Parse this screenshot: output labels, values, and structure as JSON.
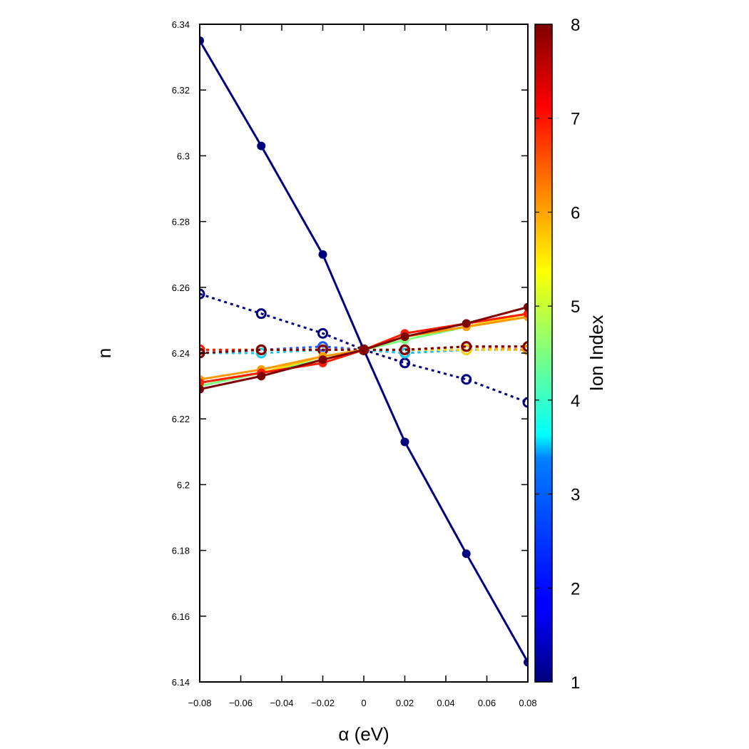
{
  "chart_data": {
    "type": "line",
    "xlabel": "α (eV)",
    "ylabel": "n",
    "xlim": [
      -0.08,
      0.08
    ],
    "ylim": [
      6.14,
      6.34
    ],
    "x": [
      -0.08,
      -0.05,
      -0.02,
      0.0,
      0.02,
      0.05,
      0.08
    ],
    "xticks": [
      -0.08,
      -0.06,
      -0.04,
      -0.02,
      0,
      0.02,
      0.04,
      0.06,
      0.08
    ],
    "xtick_labels": [
      "−0.08",
      "−0.06",
      "−0.04",
      "−0.02",
      "0",
      "0.02",
      "0.04",
      "0.06",
      "0.08"
    ],
    "yticks": [
      6.14,
      6.16,
      6.18,
      6.2,
      6.22,
      6.24,
      6.26,
      6.28,
      6.3,
      6.32,
      6.34
    ],
    "ytick_labels": [
      "6.14",
      "6.16",
      "6.18",
      "6.2",
      "6.22",
      "6.24",
      "6.26",
      "6.28",
      "6.3",
      "6.32",
      "6.34"
    ],
    "grid": false,
    "colorbar": {
      "label": "Ion Index",
      "range": [
        1,
        8
      ],
      "ticks": [
        1,
        2,
        3,
        4,
        5,
        6,
        7,
        8
      ],
      "tick_labels": [
        "1",
        "2",
        "3",
        "4",
        "5",
        "6",
        "7",
        "8"
      ],
      "colormap": "jet"
    },
    "series": [
      {
        "ion": 1,
        "style": "solid",
        "marker": "filled-circle",
        "color": "#00007f",
        "y": [
          6.335,
          6.303,
          6.27,
          6.241,
          6.213,
          6.179,
          6.146
        ]
      },
      {
        "ion": 1,
        "style": "dotted",
        "marker": "open-circle",
        "color": "#00007f",
        "y": [
          6.258,
          6.252,
          6.246,
          6.241,
          6.237,
          6.232,
          6.225
        ]
      },
      {
        "ion": 2,
        "style": "dotted",
        "marker": "open-circle",
        "color": "#1c58ff",
        "y": [
          6.24,
          6.241,
          6.242,
          6.241,
          6.24,
          6.241,
          6.241
        ]
      },
      {
        "ion": 3,
        "style": "dotted",
        "marker": "open-circle",
        "color": "#16c8ee",
        "y": [
          6.24,
          6.24,
          6.241,
          6.241,
          6.24,
          6.241,
          6.241
        ]
      },
      {
        "ion": 4,
        "style": "solid",
        "marker": "filled-circle",
        "color": "#7bff7c",
        "y": [
          6.23,
          6.234,
          6.238,
          6.241,
          6.244,
          6.248,
          6.251
        ]
      },
      {
        "ion": 4,
        "style": "dotted",
        "marker": "open-circle",
        "color": "#7bff7c",
        "y": [
          6.241,
          6.241,
          6.241,
          6.241,
          6.241,
          6.241,
          6.241
        ]
      },
      {
        "ion": 5,
        "style": "solid",
        "marker": "filled-circle",
        "color": "#ffd400",
        "y": [
          6.231,
          6.234,
          6.239,
          6.241,
          6.245,
          6.248,
          6.252
        ]
      },
      {
        "ion": 5,
        "style": "dotted",
        "marker": "open-circle",
        "color": "#ffd400",
        "y": [
          6.241,
          6.241,
          6.241,
          6.241,
          6.241,
          6.241,
          6.241
        ]
      },
      {
        "ion": 6,
        "style": "solid",
        "marker": "filled-circle",
        "color": "#ff9a00",
        "y": [
          6.232,
          6.235,
          6.239,
          6.241,
          6.245,
          6.248,
          6.251
        ]
      },
      {
        "ion": 6,
        "style": "dotted",
        "marker": "open-circle",
        "color": "#ff9a00",
        "y": [
          6.241,
          6.241,
          6.241,
          6.241,
          6.241,
          6.242,
          6.241
        ]
      },
      {
        "ion": 7,
        "style": "solid",
        "marker": "filled-circle",
        "color": "#ff1c00",
        "y": [
          6.231,
          6.234,
          6.237,
          6.241,
          6.246,
          6.249,
          6.252
        ]
      },
      {
        "ion": 7,
        "style": "dotted",
        "marker": "open-circle",
        "color": "#ff1c00",
        "y": [
          6.241,
          6.241,
          6.241,
          6.241,
          6.241,
          6.242,
          6.242
        ]
      },
      {
        "ion": 8,
        "style": "solid",
        "marker": "filled-circle",
        "color": "#7f0000",
        "y": [
          6.229,
          6.233,
          6.238,
          6.241,
          6.245,
          6.249,
          6.254
        ]
      },
      {
        "ion": 8,
        "style": "dotted",
        "marker": "open-circle",
        "color": "#7f0000",
        "y": [
          6.24,
          6.241,
          6.241,
          6.241,
          6.241,
          6.242,
          6.242
        ]
      }
    ]
  }
}
